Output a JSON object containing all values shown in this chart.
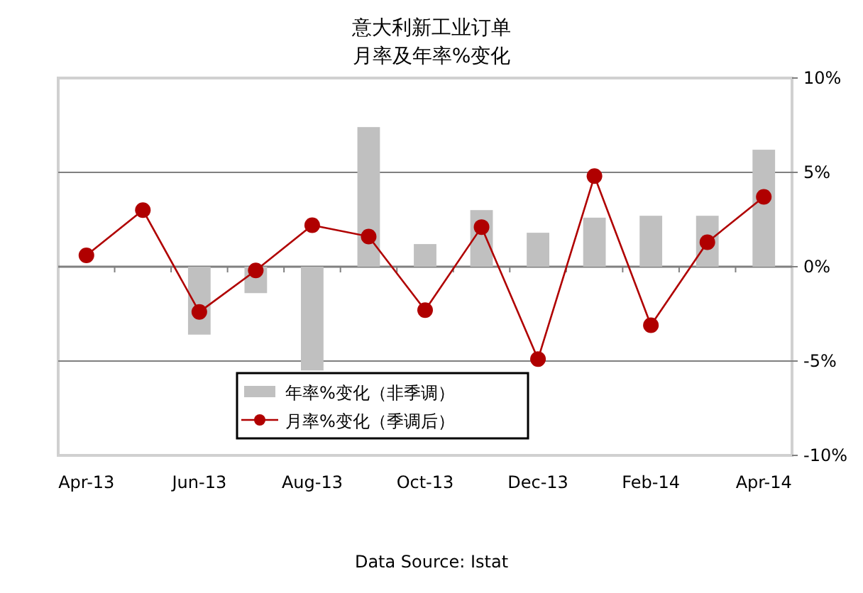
{
  "chart_data": {
    "type": "bar",
    "title": "意大利新工业订单",
    "subtitle": "月率及年率%变化",
    "categories": [
      "Apr-13",
      null,
      "Jun-13",
      null,
      "Aug-13",
      null,
      "Oct-13",
      null,
      "Dec-13",
      null,
      "Feb-14",
      null,
      "Apr-14"
    ],
    "series": [
      {
        "name": "年率%变化（非季调）",
        "color": "#c0c0c0",
        "values": [
          0,
          0,
          -3.6,
          -1.4,
          -5.5,
          7.4,
          1.2,
          3.0,
          1.8,
          2.6,
          2.7,
          2.7,
          6.2
        ]
      },
      {
        "name": "月率%变化（季调后）",
        "type": "line",
        "color": "#b00000",
        "marker": "circle",
        "values": [
          0.6,
          3.0,
          -2.4,
          -0.2,
          2.2,
          1.6,
          -2.3,
          2.1,
          -4.9,
          4.8,
          -3.1,
          1.3,
          3.7
        ]
      }
    ],
    "ylim": [
      -10,
      10
    ],
    "yticks": [
      {
        "value": 10,
        "label": "10%"
      },
      {
        "value": 5,
        "label": "5%"
      },
      {
        "value": 0,
        "label": "0%"
      },
      {
        "value": -5,
        "label": "-5%"
      },
      {
        "value": -10,
        "label": "-10%"
      }
    ],
    "grid": "y",
    "legend": "bottom",
    "annotations": [
      "Data Source: Istat"
    ]
  }
}
